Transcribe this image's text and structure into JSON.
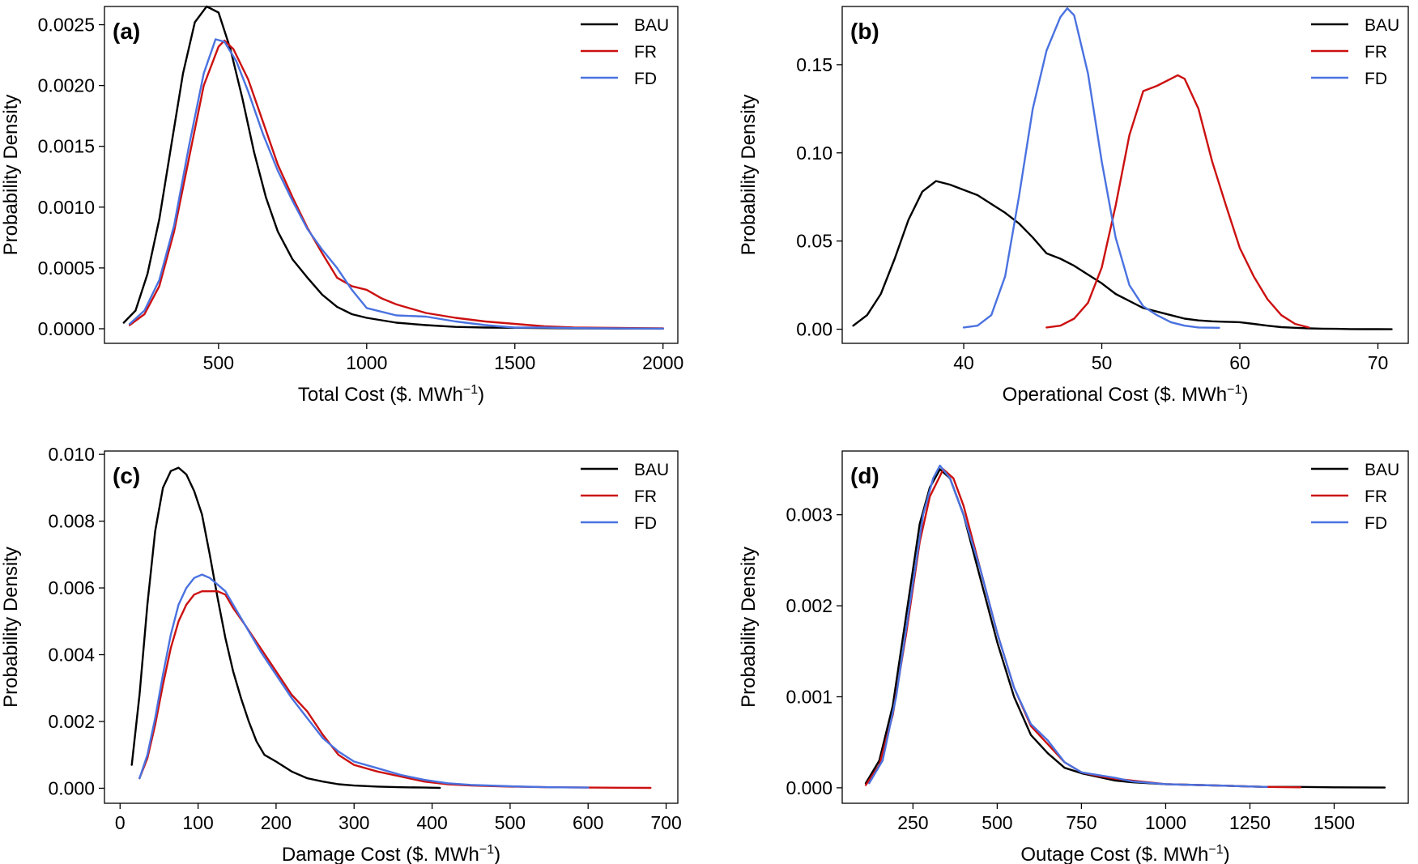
{
  "series_colors": {
    "BAU": "#000000",
    "FR": "#cc1010",
    "FD": "#4a72e0"
  },
  "chart_data": [
    {
      "type": "line",
      "panel_label": "(a)",
      "xlabel": "Total Cost ($. MWh",
      "xlabel_sup": "−1",
      "xlabel_close": ")",
      "ylabel": "Probability Density",
      "xlim": [
        115,
        2050
      ],
      "ylim": [
        -0.00012,
        0.00265
      ],
      "xticks": [
        500,
        1000,
        1500,
        2000
      ],
      "xtick_labels": [
        "500",
        "1000",
        "1500",
        "2000"
      ],
      "yticks": [
        0,
        0.0005,
        0.001,
        0.0015,
        0.002,
        0.0025
      ],
      "ytick_labels": [
        "0.0000",
        "0.0005",
        "0.0010",
        "0.0015",
        "0.0020",
        "0.0025"
      ],
      "legend": [
        "BAU",
        "FR",
        "FD"
      ],
      "legend_position": "top-right",
      "series": [
        {
          "name": "BAU",
          "x": [
            180,
            220,
            260,
            300,
            340,
            380,
            420,
            460,
            500,
            540,
            580,
            620,
            660,
            700,
            750,
            800,
            850,
            900,
            950,
            1000,
            1100,
            1200,
            1300,
            1400,
            1500,
            1600,
            1700,
            1800,
            1900,
            2000
          ],
          "y": [
            5e-05,
            0.00015,
            0.00045,
            0.0009,
            0.0015,
            0.0021,
            0.00252,
            0.00265,
            0.0026,
            0.0023,
            0.0019,
            0.00145,
            0.00108,
            0.0008,
            0.00057,
            0.00042,
            0.00028,
            0.00018,
            0.00012,
            9e-05,
            5e-05,
            3e-05,
            1.5e-05,
            1e-05,
            8e-06,
            5e-06,
            3e-06,
            2e-06,
            1e-06,
            5e-07
          ]
        },
        {
          "name": "FR",
          "x": [
            200,
            250,
            300,
            350,
            400,
            450,
            500,
            520,
            550,
            600,
            650,
            700,
            750,
            800,
            850,
            900,
            950,
            1000,
            1050,
            1100,
            1200,
            1300,
            1400,
            1500,
            1600,
            1700,
            1800,
            1900,
            2000
          ],
          "y": [
            3e-05,
            0.00012,
            0.00035,
            0.0008,
            0.0014,
            0.002,
            0.00232,
            0.00237,
            0.0023,
            0.00205,
            0.0017,
            0.00135,
            0.00108,
            0.00083,
            0.00062,
            0.00042,
            0.00035,
            0.00032,
            0.00025,
            0.0002,
            0.00013,
            9e-05,
            6e-05,
            4e-05,
            2e-05,
            1e-05,
            8e-06,
            5e-06,
            3e-06
          ]
        },
        {
          "name": "FD",
          "x": [
            200,
            250,
            300,
            350,
            400,
            450,
            490,
            520,
            560,
            600,
            650,
            700,
            750,
            800,
            850,
            900,
            950,
            1000,
            1100,
            1200,
            1300,
            1400,
            1500,
            1600,
            1700,
            1800,
            1900,
            2000
          ],
          "y": [
            4e-05,
            0.00015,
            0.0004,
            0.00085,
            0.0015,
            0.0021,
            0.00238,
            0.00236,
            0.0022,
            0.00195,
            0.0016,
            0.0013,
            0.00105,
            0.00082,
            0.00065,
            0.0005,
            0.00032,
            0.00017,
            0.00011,
            0.0001,
            6e-05,
            3e-05,
            1e-05,
            1e-05,
            5e-06,
            3e-06,
            2e-06,
            1e-06
          ]
        }
      ]
    },
    {
      "type": "line",
      "panel_label": "(b)",
      "xlabel": "Operational Cost ($. MWh",
      "xlabel_sup": "−1",
      "xlabel_close": ")",
      "ylabel": "Probability Density",
      "xlim": [
        31.2,
        72.2
      ],
      "ylim": [
        -0.008,
        0.183
      ],
      "xticks": [
        40,
        50,
        60,
        70
      ],
      "xtick_labels": [
        "40",
        "50",
        "60",
        "70"
      ],
      "yticks": [
        0,
        0.05,
        0.1,
        0.15
      ],
      "ytick_labels": [
        "0.00",
        "0.05",
        "0.10",
        "0.15"
      ],
      "legend": [
        "BAU",
        "FR",
        "FD"
      ],
      "legend_position": "top-right",
      "series": [
        {
          "name": "BAU",
          "x": [
            32,
            33,
            34,
            35,
            36,
            37,
            38,
            39,
            40,
            41,
            42,
            43,
            44,
            45,
            46,
            47,
            48,
            49,
            50,
            51,
            52,
            53,
            54,
            55,
            56,
            57,
            58,
            59,
            60,
            61,
            62,
            63,
            64,
            65,
            66,
            67,
            68,
            69,
            70,
            71
          ],
          "y": [
            0.002,
            0.008,
            0.02,
            0.04,
            0.062,
            0.078,
            0.084,
            0.082,
            0.079,
            0.076,
            0.071,
            0.066,
            0.06,
            0.052,
            0.043,
            0.04,
            0.036,
            0.031,
            0.026,
            0.02,
            0.016,
            0.012,
            0.01,
            0.008,
            0.006,
            0.005,
            0.0045,
            0.0042,
            0.004,
            0.003,
            0.002,
            0.0012,
            0.0008,
            0.0005,
            0.0003,
            0.0002,
            0.0001,
            5e-05,
            2e-05,
            1e-05
          ]
        },
        {
          "name": "FR",
          "x": [
            46,
            47,
            48,
            49,
            50,
            51,
            52,
            53,
            54,
            55,
            55.5,
            56,
            57,
            58,
            59,
            60,
            61,
            62,
            63,
            64,
            65
          ],
          "y": [
            0.001,
            0.002,
            0.006,
            0.015,
            0.035,
            0.07,
            0.11,
            0.135,
            0.138,
            0.142,
            0.144,
            0.142,
            0.125,
            0.095,
            0.07,
            0.046,
            0.03,
            0.017,
            0.008,
            0.003,
            0.001
          ]
        },
        {
          "name": "FD",
          "x": [
            40,
            41,
            42,
            43,
            44,
            45,
            46,
            47,
            47.5,
            48,
            49,
            50,
            51,
            52,
            53,
            54,
            55,
            56,
            57,
            58.5
          ],
          "y": [
            0.001,
            0.002,
            0.008,
            0.03,
            0.075,
            0.125,
            0.158,
            0.177,
            0.182,
            0.178,
            0.145,
            0.095,
            0.052,
            0.025,
            0.013,
            0.008,
            0.004,
            0.002,
            0.001,
            0.0008
          ]
        }
      ]
    },
    {
      "type": "line",
      "panel_label": "(c)",
      "xlabel": "Damage Cost ($. MWh",
      "xlabel_sup": "−1",
      "xlabel_close": ")",
      "ylabel": "Probability Density",
      "xlim": [
        -20,
        715
      ],
      "ylim": [
        -0.00045,
        0.0101
      ],
      "xticks": [
        0,
        100,
        200,
        300,
        400,
        500,
        600,
        700
      ],
      "xtick_labels": [
        "0",
        "100",
        "200",
        "300",
        "400",
        "500",
        "600",
        "700"
      ],
      "yticks": [
        0,
        0.002,
        0.004,
        0.006,
        0.008,
        0.01
      ],
      "ytick_labels": [
        "0.000",
        "0.002",
        "0.004",
        "0.006",
        "0.008",
        "0.010"
      ],
      "legend": [
        "BAU",
        "FR",
        "FD"
      ],
      "legend_position": "top-right",
      "series": [
        {
          "name": "BAU",
          "x": [
            15,
            25,
            35,
            45,
            55,
            65,
            75,
            85,
            95,
            105,
            115,
            125,
            135,
            145,
            155,
            165,
            175,
            185,
            200,
            220,
            240,
            260,
            280,
            300,
            330,
            360,
            390,
            410
          ],
          "y": [
            0.0007,
            0.0028,
            0.0055,
            0.0077,
            0.009,
            0.0095,
            0.0096,
            0.0094,
            0.0089,
            0.0082,
            0.007,
            0.0057,
            0.0045,
            0.0035,
            0.0027,
            0.002,
            0.0014,
            0.001,
            0.0008,
            0.0005,
            0.0003,
            0.0002,
            0.00012,
            8e-05,
            5e-05,
            3e-05,
            2e-05,
            1e-05
          ]
        },
        {
          "name": "FR",
          "x": [
            25,
            35,
            45,
            55,
            65,
            75,
            85,
            95,
            105,
            115,
            125,
            135,
            145,
            160,
            180,
            200,
            220,
            240,
            260,
            280,
            300,
            330,
            360,
            390,
            420,
            450,
            500,
            550,
            600,
            680
          ],
          "y": [
            0.0003,
            0.0009,
            0.0019,
            0.0031,
            0.0042,
            0.005,
            0.0055,
            0.0058,
            0.0059,
            0.0059,
            0.0059,
            0.0058,
            0.0054,
            0.0049,
            0.0042,
            0.0035,
            0.0028,
            0.0023,
            0.0016,
            0.001,
            0.0007,
            0.0005,
            0.00035,
            0.0002,
            0.00012,
            8e-05,
            5e-05,
            3e-05,
            2e-05,
            1e-05
          ]
        },
        {
          "name": "FD",
          "x": [
            25,
            35,
            45,
            55,
            65,
            75,
            85,
            95,
            105,
            115,
            125,
            135,
            145,
            160,
            180,
            200,
            220,
            240,
            260,
            280,
            300,
            330,
            360,
            390,
            420,
            450,
            500,
            550,
            600
          ],
          "y": [
            0.0003,
            0.001,
            0.0021,
            0.0034,
            0.0046,
            0.0055,
            0.006,
            0.0063,
            0.0064,
            0.0063,
            0.0061,
            0.0059,
            0.0055,
            0.0049,
            0.0041,
            0.0034,
            0.0027,
            0.0021,
            0.0015,
            0.0011,
            0.0008,
            0.0006,
            0.0004,
            0.00025,
            0.00015,
            0.0001,
            6e-05,
            3e-05,
            2e-05
          ]
        }
      ]
    },
    {
      "type": "line",
      "panel_label": "(d)",
      "xlabel": "Outage Cost ($. MWh",
      "xlabel_sup": "−1",
      "xlabel_close": ")",
      "ylabel": "Probability Density",
      "xlim": [
        40,
        1720
      ],
      "ylim": [
        -0.00017,
        0.0037
      ],
      "xticks": [
        250,
        500,
        750,
        1000,
        1250,
        1500
      ],
      "xtick_labels": [
        "250",
        "500",
        "750",
        "1000",
        "1250",
        "1500"
      ],
      "yticks": [
        0,
        0.001,
        0.002,
        0.003
      ],
      "ytick_labels": [
        "0.000",
        "0.001",
        "0.002",
        "0.003"
      ],
      "legend": [
        "BAU",
        "FR",
        "FD"
      ],
      "legend_position": "top-right",
      "series": [
        {
          "name": "BAU",
          "x": [
            110,
            150,
            190,
            230,
            270,
            300,
            330,
            360,
            400,
            450,
            500,
            550,
            600,
            650,
            700,
            750,
            800,
            850,
            900,
            1000,
            1100,
            1200,
            1300,
            1400,
            1500,
            1650
          ],
          "y": [
            5e-05,
            0.0003,
            0.0009,
            0.0019,
            0.0029,
            0.0033,
            0.0035,
            0.0034,
            0.003,
            0.0023,
            0.0016,
            0.001,
            0.00058,
            0.00038,
            0.00022,
            0.00016,
            0.00012,
            8e-05,
            6e-05,
            4e-05,
            3e-05,
            2e-05,
            1e-05,
            1e-05,
            5e-06,
            3e-06
          ]
        },
        {
          "name": "FR",
          "x": [
            110,
            150,
            190,
            230,
            270,
            300,
            340,
            370,
            400,
            450,
            500,
            550,
            600,
            650,
            700,
            750,
            800,
            850,
            900,
            1000,
            1100,
            1200,
            1300,
            1400
          ],
          "y": [
            3e-05,
            0.00025,
            0.0008,
            0.0017,
            0.0027,
            0.0032,
            0.0035,
            0.0034,
            0.0031,
            0.0024,
            0.0017,
            0.0011,
            0.00068,
            0.00048,
            0.00028,
            0.00017,
            0.00013,
            0.0001,
            8e-05,
            4e-05,
            3e-05,
            2e-05,
            1e-05,
            5e-06
          ]
        },
        {
          "name": "FD",
          "x": [
            120,
            160,
            200,
            240,
            280,
            310,
            330,
            360,
            400,
            450,
            500,
            550,
            600,
            650,
            700,
            750,
            800,
            850,
            900,
            1000,
            1100,
            1200,
            1300
          ],
          "y": [
            5e-05,
            0.0003,
            0.001,
            0.002,
            0.003,
            0.0034,
            0.00354,
            0.0034,
            0.003,
            0.0024,
            0.0017,
            0.0011,
            0.0007,
            0.00052,
            0.00028,
            0.00017,
            0.00014,
            0.00011,
            7e-05,
            4e-05,
            3e-05,
            2e-05,
            1e-05
          ]
        }
      ]
    }
  ]
}
